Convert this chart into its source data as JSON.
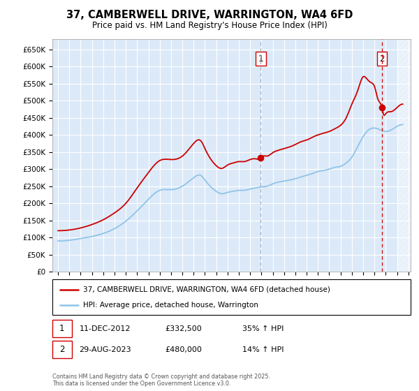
{
  "title": "37, CAMBERWELL DRIVE, WARRINGTON, WA4 6FD",
  "subtitle": "Price paid vs. HM Land Registry's House Price Index (HPI)",
  "ylim": [
    0,
    680000
  ],
  "xlim_start": 1994.5,
  "xlim_end": 2026.2,
  "plot_bg_color": "#dce9f8",
  "grid_color": "#ffffff",
  "sale1_date": 2012.94,
  "sale1_price": 332500,
  "sale1_label": "1",
  "sale2_date": 2023.66,
  "sale2_price": 480000,
  "sale2_label": "2",
  "hpi_line_color": "#8ec4e8",
  "price_line_color": "#cc0000",
  "dashed1_color": "#aaaaaa",
  "dashed2_color": "#cc0000",
  "legend_label1": "37, CAMBERWELL DRIVE, WARRINGTON, WA4 6FD (detached house)",
  "legend_label2": "HPI: Average price, detached house, Warrington",
  "annotation1_date": "11-DEC-2012",
  "annotation1_price": "£332,500",
  "annotation1_hpi": "35% ↑ HPI",
  "annotation2_date": "29-AUG-2023",
  "annotation2_price": "£480,000",
  "annotation2_hpi": "14% ↑ HPI",
  "footer": "Contains HM Land Registry data © Crown copyright and database right 2025.\nThis data is licensed under the Open Government Licence v3.0.",
  "hpi_key_years": [
    1995,
    1996,
    1997,
    1998,
    1999,
    2000,
    2001,
    2002,
    2003,
    2004,
    2005,
    2006,
    2007,
    2007.7,
    2008,
    2009,
    2009.5,
    2010,
    2010.5,
    2011,
    2011.5,
    2012,
    2012.5,
    2013,
    2013.5,
    2014,
    2014.5,
    2015,
    2015.5,
    2016,
    2016.5,
    2017,
    2017.5,
    2018,
    2018.5,
    2019,
    2019.5,
    2020,
    2020.5,
    2021,
    2021.5,
    2022,
    2022.5,
    2023,
    2023.5,
    2024,
    2024.5,
    2025,
    2025.5
  ],
  "hpi_key_vals": [
    90000,
    92000,
    97000,
    103000,
    112000,
    126000,
    148000,
    178000,
    212000,
    238000,
    240000,
    250000,
    275000,
    280000,
    268000,
    235000,
    228000,
    232000,
    235000,
    238000,
    238000,
    242000,
    245000,
    248000,
    250000,
    257000,
    262000,
    265000,
    268000,
    272000,
    277000,
    282000,
    287000,
    293000,
    296000,
    300000,
    305000,
    308000,
    318000,
    335000,
    365000,
    395000,
    415000,
    420000,
    415000,
    410000,
    415000,
    425000,
    430000
  ],
  "price_key_years": [
    1995,
    1996,
    1997,
    1998,
    1999,
    2000,
    2001,
    2002,
    2003,
    2004,
    2005,
    2006,
    2007,
    2007.7,
    2008,
    2009,
    2009.5,
    2010,
    2010.5,
    2011,
    2011.5,
    2012,
    2012.5,
    2012.94,
    2013,
    2013.5,
    2014,
    2014.5,
    2015,
    2015.5,
    2016,
    2016.5,
    2017,
    2017.5,
    2018,
    2018.5,
    2019,
    2019.5,
    2020,
    2020.5,
    2021,
    2021.5,
    2022,
    2022.3,
    2022.6,
    2022.9,
    2023,
    2023.3,
    2023.66,
    2023.8,
    2024,
    2024.5,
    2025,
    2025.5
  ],
  "price_key_vals": [
    120000,
    122000,
    128000,
    138000,
    152000,
    172000,
    200000,
    245000,
    290000,
    325000,
    328000,
    338000,
    375000,
    380000,
    360000,
    310000,
    302000,
    312000,
    318000,
    322000,
    322000,
    328000,
    330000,
    332500,
    335000,
    338000,
    348000,
    355000,
    360000,
    365000,
    372000,
    380000,
    385000,
    393000,
    400000,
    405000,
    410000,
    418000,
    428000,
    450000,
    490000,
    528000,
    570000,
    565000,
    555000,
    548000,
    542000,
    505000,
    480000,
    460000,
    462000,
    468000,
    480000,
    490000
  ]
}
